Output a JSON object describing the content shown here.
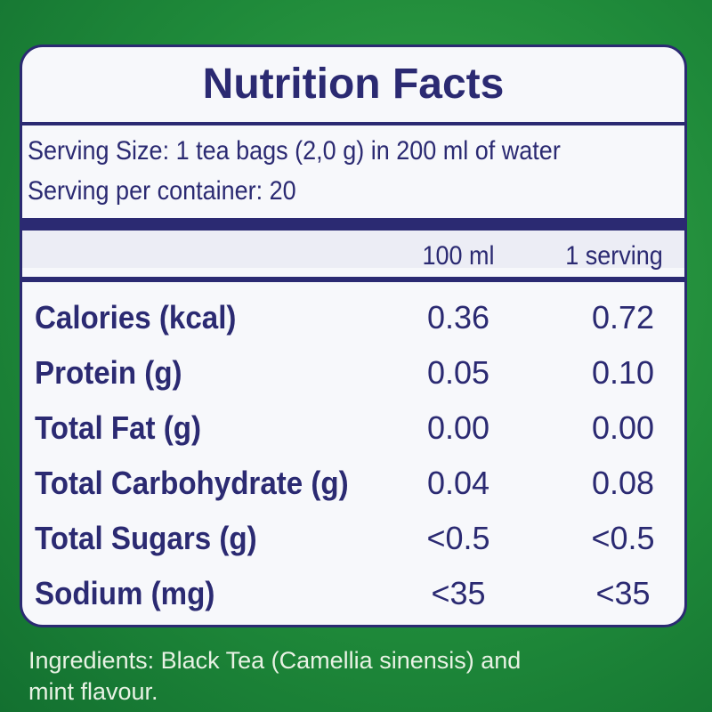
{
  "header": {
    "title": "Nutrition Facts"
  },
  "serving": {
    "size": "Serving Size: 1 tea bags (2,0 g) in 200 ml of water",
    "per_container": "Serving per container: 20"
  },
  "table": {
    "columns": [
      "100 ml",
      "1 serving"
    ],
    "rows": [
      [
        "Calories (kcal)",
        "0.36",
        "0.72"
      ],
      [
        "Protein (g)",
        "0.05",
        "0.10"
      ],
      [
        "Total Fat (g)",
        "0.00",
        "0.00"
      ],
      [
        "Total Carbohydrate (g)",
        "0.04",
        "0.08"
      ],
      [
        "Total Sugars (g)",
        "<0.5",
        "<0.5"
      ],
      [
        "Sodium (mg)",
        "<35",
        "<35"
      ]
    ]
  },
  "footer": {
    "ingredients_line1": "Ingredients: Black Tea (Camellia sinensis) and",
    "ingredients_line2": "mint flavour."
  }
}
